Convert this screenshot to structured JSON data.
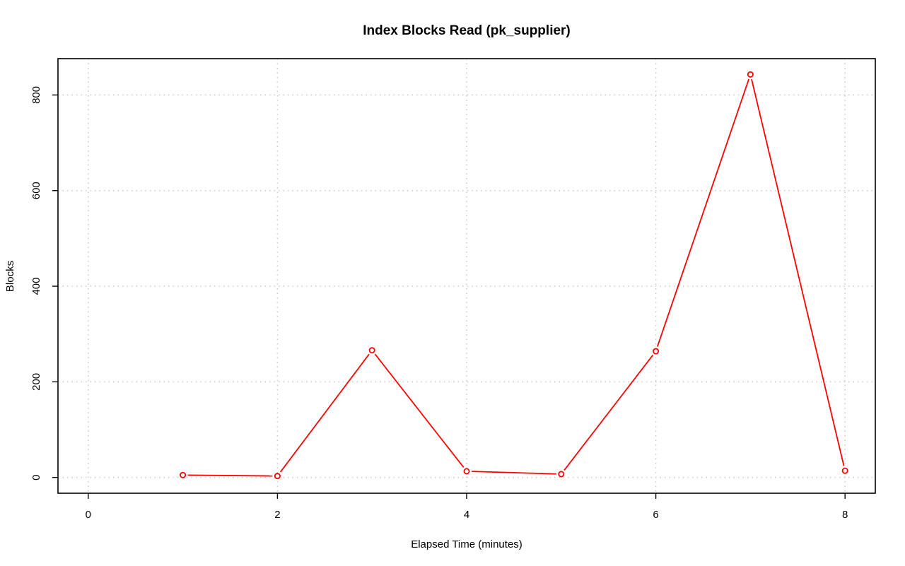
{
  "chart_data": {
    "type": "line",
    "title": "Index Blocks Read (pk_supplier)",
    "xlabel": "Elapsed Time (minutes)",
    "ylabel": "Blocks",
    "xlim": [
      -0.32,
      8.32
    ],
    "ylim": [
      -33,
      876
    ],
    "xticks": [
      0,
      2,
      4,
      6,
      8
    ],
    "yticks": [
      0,
      200,
      400,
      600,
      800
    ],
    "grid": true,
    "series": [
      {
        "color": "#ff0000",
        "marker": "circle",
        "x": [
          1,
          2,
          3,
          4,
          5,
          6,
          7,
          8
        ],
        "y": [
          5,
          3,
          266,
          13,
          7,
          264,
          843,
          14
        ]
      }
    ]
  }
}
